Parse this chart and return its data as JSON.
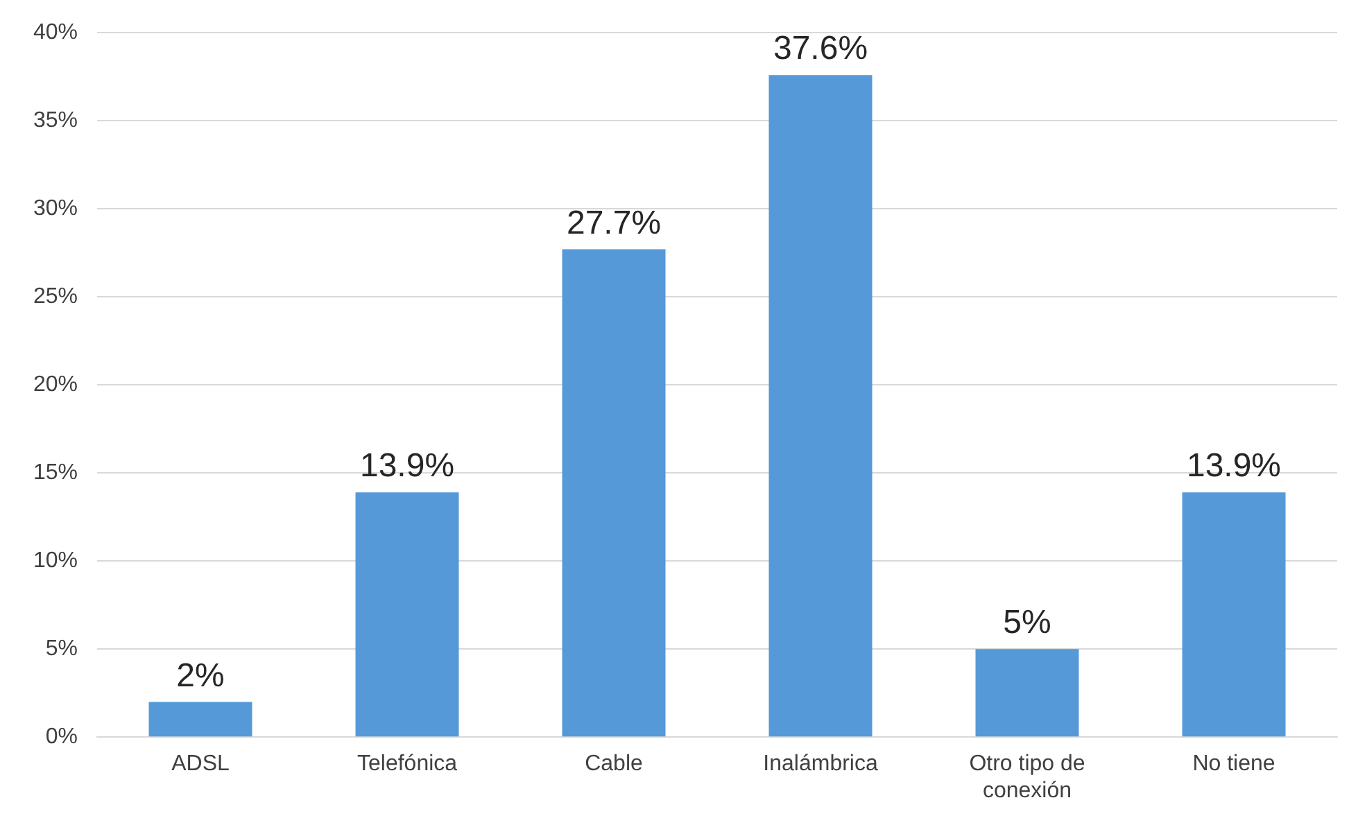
{
  "chart_data": {
    "type": "bar",
    "categories": [
      "ADSL",
      "Telefónica",
      "Cable",
      "Inalámbrica",
      "Otro tipo de conexión",
      "No tiene"
    ],
    "values": [
      2,
      13.9,
      27.7,
      37.6,
      5,
      13.9
    ],
    "value_labels": [
      "2%",
      "13.9%",
      "27.7%",
      "37.6%",
      "5%",
      "13.9%"
    ],
    "color": "#5599d8",
    "ylim": [
      0,
      40
    ],
    "yticks": [
      {
        "value": 0,
        "label": "0%"
      },
      {
        "value": 5,
        "label": "5%"
      },
      {
        "value": 10,
        "label": "10%"
      },
      {
        "value": 15,
        "label": "15%"
      },
      {
        "value": 20,
        "label": "20%"
      },
      {
        "value": 25,
        "label": "25%"
      },
      {
        "value": 30,
        "label": "30%"
      },
      {
        "value": 35,
        "label": "35%"
      },
      {
        "value": 40,
        "label": "40%"
      }
    ],
    "grid": "y",
    "legend": false
  }
}
